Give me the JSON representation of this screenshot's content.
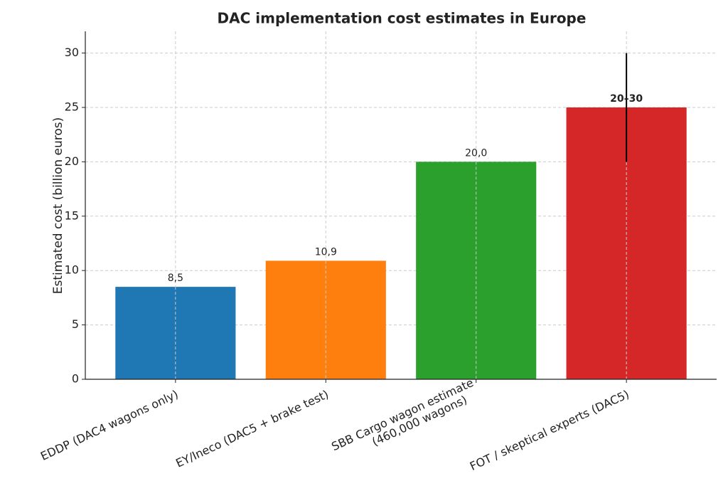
{
  "chart_data": {
    "type": "bar",
    "title": "DAC implementation cost estimates in Europe",
    "ylabel": "Estimated cost (billion euros)",
    "categories": [
      "EDDP (DAC4 wagons only)",
      "EY/Ineco (DAC5 + brake test)",
      "SBB Cargo wagon estimate\n(460,000 wagons)",
      "FOT / skeptical experts (DAC5)"
    ],
    "values": [
      8.5,
      10.9,
      20,
      25
    ],
    "value_labels": [
      "8,5",
      "10,9",
      "20,0",
      "20–30"
    ],
    "value_label_bold": [
      false,
      false,
      false,
      true
    ],
    "errors": [
      null,
      null,
      null,
      5
    ],
    "colors": [
      "#1f77b4",
      "#ff7f0e",
      "#2ca02c",
      "#d62728"
    ],
    "ylim": [
      0,
      32
    ],
    "yticks": [
      0,
      5,
      10,
      15,
      20,
      25,
      30
    ],
    "grid": true
  }
}
